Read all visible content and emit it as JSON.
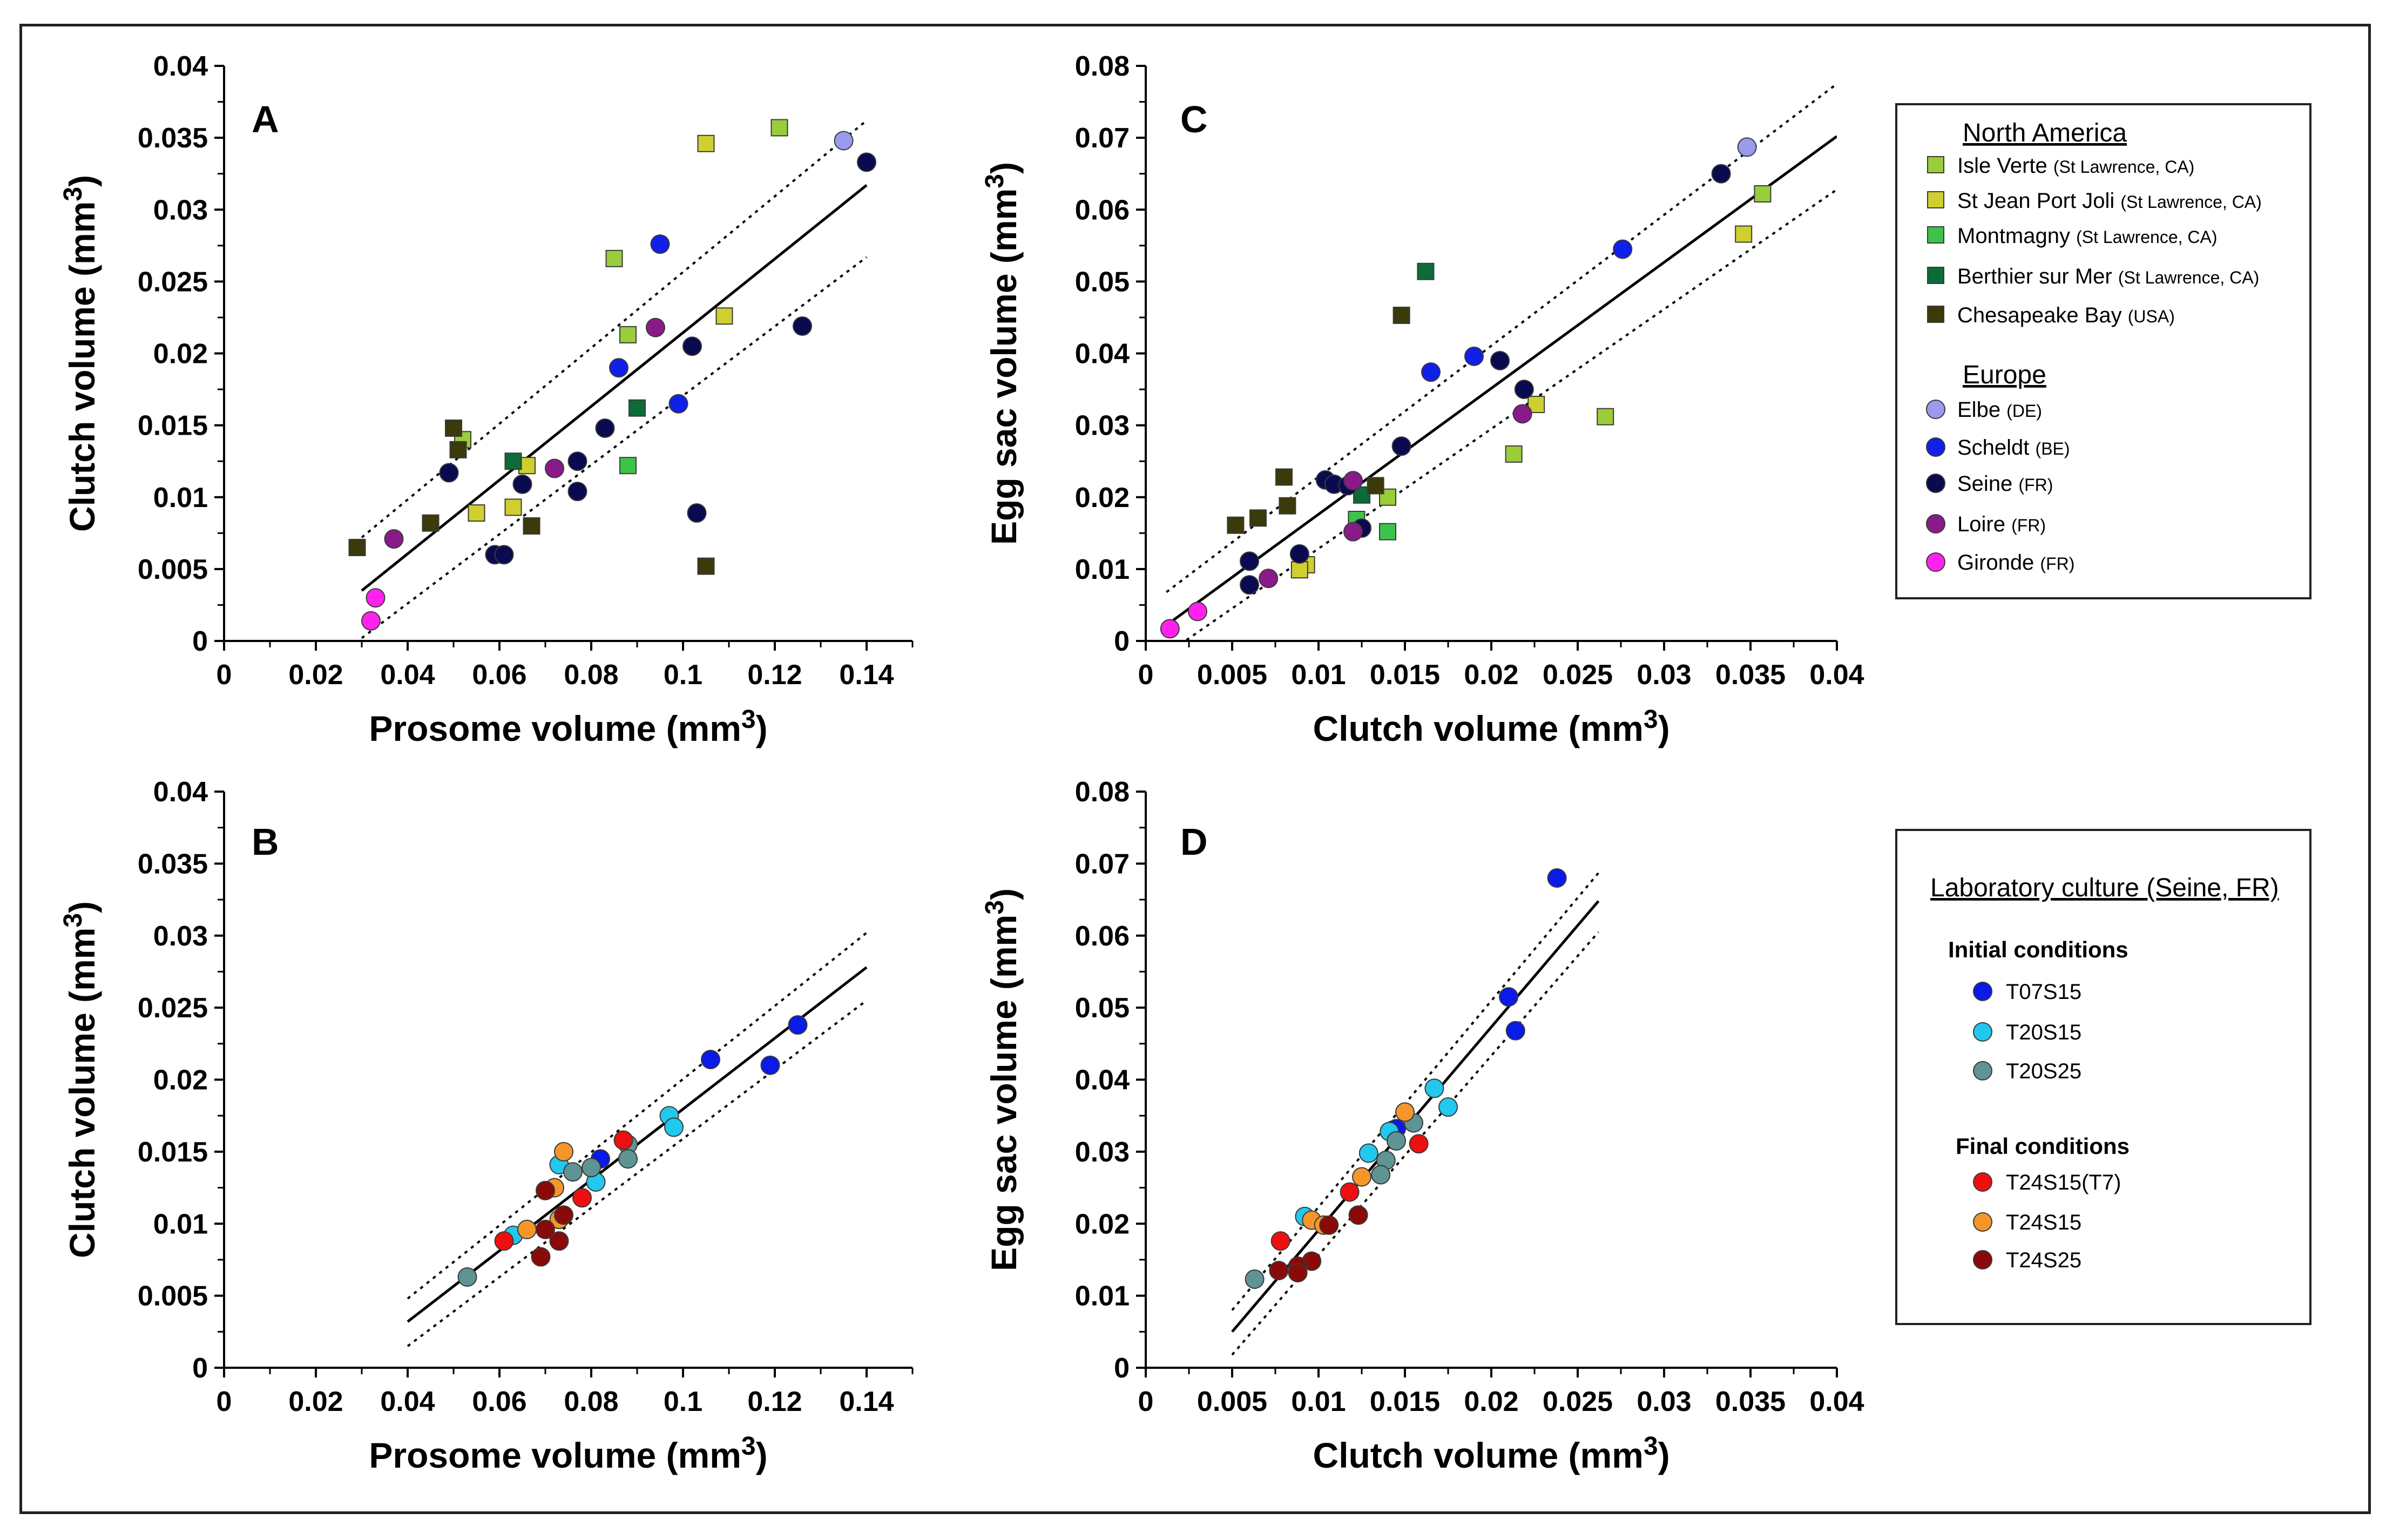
{
  "colors": {
    "isle_verte": "#9acd3a",
    "st_jean": "#cfcf30",
    "montmagny": "#3cc44a",
    "berthier": "#0d6b3a",
    "chesapeake": "#3a3a0a",
    "elbe": "#9a9aee",
    "scheldt": "#1020e8",
    "seine": "#0a0a50",
    "loire": "#8a1a8a",
    "gironde": "#ff22ee",
    "t07s15": "#0a1ae8",
    "t20s15": "#22c8ee",
    "t20s25": "#5e9494",
    "t24s15_t7": "#ee1010",
    "t24s15": "#f5962a",
    "t24s25": "#8a0a0a"
  },
  "legend_top": {
    "north_america_title": "North America",
    "europe_title": "Europe",
    "items": [
      {
        "key": "isle_verte",
        "label": "Isle Verte",
        "sub": "(St Lawrence, CA)",
        "marker": "square"
      },
      {
        "key": "st_jean",
        "label": "St Jean Port Joli",
        "sub": "(St Lawrence, CA)",
        "marker": "square"
      },
      {
        "key": "montmagny",
        "label": "Montmagny",
        "sub": "(St Lawrence, CA)",
        "marker": "square"
      },
      {
        "key": "berthier",
        "label": "Berthier sur Mer",
        "sub": "(St Lawrence, CA)",
        "marker": "square"
      },
      {
        "key": "chesapeake",
        "label": "Chesapeake Bay",
        "sub": "(USA)",
        "marker": "square"
      },
      {
        "key": "elbe",
        "label": "Elbe",
        "sub": "(DE)",
        "marker": "circle"
      },
      {
        "key": "scheldt",
        "label": "Scheldt",
        "sub": "(BE)",
        "marker": "circle"
      },
      {
        "key": "seine",
        "label": "Seine",
        "sub": "(FR)",
        "marker": "circle"
      },
      {
        "key": "loire",
        "label": "Loire",
        "sub": "(FR)",
        "marker": "circle"
      },
      {
        "key": "gironde",
        "label": "Gironde",
        "sub": "(FR)",
        "marker": "circle"
      }
    ]
  },
  "legend_bottom": {
    "title": "Laboratory culture (Seine, FR)",
    "initial_title": "Initial conditions",
    "final_title": "Final conditions",
    "items": [
      {
        "key": "t07s15",
        "label": "T07S15"
      },
      {
        "key": "t20s15",
        "label": "T20S15"
      },
      {
        "key": "t20s25",
        "label": "T20S25"
      },
      {
        "key": "t24s15_t7",
        "label": "T24S15(T7)"
      },
      {
        "key": "t24s15",
        "label": "T24S15"
      },
      {
        "key": "t24s25",
        "label": "T24S25"
      }
    ]
  },
  "chart_data": [
    {
      "panel": "A",
      "type": "scatter",
      "xlabel": "Prosome volume (mm3)",
      "ylabel": "Clutch volume (mm3)",
      "xlim": [
        0,
        0.15
      ],
      "ylim": [
        0,
        0.04
      ],
      "xticks": [
        "0",
        "0.02",
        "0.04",
        "0.06",
        "0.08",
        "0.1",
        "0.12",
        "0.14"
      ],
      "yticks": [
        "0",
        "0.005",
        "0.01",
        "0.015",
        "0.02",
        "0.025",
        "0.03",
        "0.035",
        "0.04"
      ],
      "fit": {
        "x": [
          0.03,
          0.14
        ],
        "y": [
          0.0035,
          0.0317
        ]
      },
      "ci_upper": {
        "x": [
          0.03,
          0.14
        ],
        "y": [
          0.0072,
          0.0362
        ]
      },
      "ci_lower": {
        "x": [
          0.03,
          0.14
        ],
        "y": [
          0.0002,
          0.0267
        ]
      },
      "points": [
        {
          "g": "isle_verte",
          "x": 0.121,
          "y": 0.0357
        },
        {
          "g": "isle_verte",
          "x": 0.085,
          "y": 0.0266
        },
        {
          "g": "isle_verte",
          "x": 0.088,
          "y": 0.0213
        },
        {
          "g": "isle_verte",
          "x": 0.052,
          "y": 0.014
        },
        {
          "g": "st_jean",
          "x": 0.105,
          "y": 0.0346
        },
        {
          "g": "st_jean",
          "x": 0.109,
          "y": 0.0226
        },
        {
          "g": "st_jean",
          "x": 0.066,
          "y": 0.0122
        },
        {
          "g": "st_jean",
          "x": 0.055,
          "y": 0.0089
        },
        {
          "g": "st_jean",
          "x": 0.063,
          "y": 0.0093
        },
        {
          "g": "montmagny",
          "x": 0.088,
          "y": 0.0122
        },
        {
          "g": "berthier",
          "x": 0.09,
          "y": 0.0162
        },
        {
          "g": "berthier",
          "x": 0.063,
          "y": 0.0125
        },
        {
          "g": "chesapeake",
          "x": 0.05,
          "y": 0.0148
        },
        {
          "g": "chesapeake",
          "x": 0.051,
          "y": 0.0133
        },
        {
          "g": "chesapeake",
          "x": 0.045,
          "y": 0.0082
        },
        {
          "g": "chesapeake",
          "x": 0.029,
          "y": 0.0065
        },
        {
          "g": "chesapeake",
          "x": 0.067,
          "y": 0.008
        },
        {
          "g": "chesapeake",
          "x": 0.105,
          "y": 0.0052
        },
        {
          "g": "elbe",
          "x": 0.135,
          "y": 0.0348
        },
        {
          "g": "scheldt",
          "x": 0.095,
          "y": 0.0276
        },
        {
          "g": "scheldt",
          "x": 0.086,
          "y": 0.019
        },
        {
          "g": "scheldt",
          "x": 0.099,
          "y": 0.0165
        },
        {
          "g": "seine",
          "x": 0.14,
          "y": 0.0333
        },
        {
          "g": "seine",
          "x": 0.126,
          "y": 0.0219
        },
        {
          "g": "seine",
          "x": 0.102,
          "y": 0.0205
        },
        {
          "g": "seine",
          "x": 0.083,
          "y": 0.0148
        },
        {
          "g": "seine",
          "x": 0.077,
          "y": 0.0125
        },
        {
          "g": "seine",
          "x": 0.065,
          "y": 0.0109
        },
        {
          "g": "seine",
          "x": 0.077,
          "y": 0.0104
        },
        {
          "g": "seine",
          "x": 0.049,
          "y": 0.0117
        },
        {
          "g": "seine",
          "x": 0.059,
          "y": 0.006
        },
        {
          "g": "seine",
          "x": 0.061,
          "y": 0.006
        },
        {
          "g": "seine",
          "x": 0.103,
          "y": 0.0089
        },
        {
          "g": "loire",
          "x": 0.094,
          "y": 0.0218
        },
        {
          "g": "loire",
          "x": 0.072,
          "y": 0.012
        },
        {
          "g": "loire",
          "x": 0.037,
          "y": 0.0071
        },
        {
          "g": "gironde",
          "x": 0.033,
          "y": 0.003
        },
        {
          "g": "gironde",
          "x": 0.032,
          "y": 0.0014
        }
      ]
    },
    {
      "panel": "C",
      "type": "scatter",
      "xlabel": "Clutch volume (mm3)",
      "ylabel": "Egg sac volume (mm3)",
      "xlim": [
        0,
        0.04
      ],
      "ylim": [
        0,
        0.08
      ],
      "xticks": [
        "0",
        "0.005",
        "0.01",
        "0.015",
        "0.02",
        "0.025",
        "0.03",
        "0.035",
        "0.04"
      ],
      "yticks": [
        "0",
        "0.01",
        "0.02",
        "0.03",
        "0.04",
        "0.05",
        "0.06",
        "0.07",
        "0.08"
      ],
      "fit": {
        "x": [
          0.0012,
          0.04
        ],
        "y": [
          0.0022,
          0.0702
        ]
      },
      "ci_upper": {
        "x": [
          0.0012,
          0.04
        ],
        "y": [
          0.0068,
          0.0775
        ]
      },
      "ci_lower": {
        "x": [
          0.0012,
          0.04
        ],
        "y": [
          -0.0018,
          0.0628
        ]
      },
      "points": [
        {
          "g": "isle_verte",
          "x": 0.0357,
          "y": 0.0622
        },
        {
          "g": "isle_verte",
          "x": 0.0266,
          "y": 0.0312
        },
        {
          "g": "isle_verte",
          "x": 0.0213,
          "y": 0.026
        },
        {
          "g": "isle_verte",
          "x": 0.014,
          "y": 0.02
        },
        {
          "g": "st_jean",
          "x": 0.0346,
          "y": 0.0566
        },
        {
          "g": "st_jean",
          "x": 0.0226,
          "y": 0.0329
        },
        {
          "g": "st_jean",
          "x": 0.0093,
          "y": 0.0106
        },
        {
          "g": "st_jean",
          "x": 0.0089,
          "y": 0.0099
        },
        {
          "g": "montmagny",
          "x": 0.014,
          "y": 0.0152
        },
        {
          "g": "montmagny",
          "x": 0.0122,
          "y": 0.0169
        },
        {
          "g": "berthier",
          "x": 0.0162,
          "y": 0.0514
        },
        {
          "g": "berthier",
          "x": 0.0125,
          "y": 0.0203
        },
        {
          "g": "chesapeake",
          "x": 0.0148,
          "y": 0.0453
        },
        {
          "g": "chesapeake",
          "x": 0.008,
          "y": 0.0228
        },
        {
          "g": "chesapeake",
          "x": 0.0082,
          "y": 0.0188
        },
        {
          "g": "chesapeake",
          "x": 0.0065,
          "y": 0.0171
        },
        {
          "g": "chesapeake",
          "x": 0.0052,
          "y": 0.0161
        },
        {
          "g": "chesapeake",
          "x": 0.0133,
          "y": 0.0216
        },
        {
          "g": "elbe",
          "x": 0.0348,
          "y": 0.0687
        },
        {
          "g": "scheldt",
          "x": 0.0276,
          "y": 0.0545
        },
        {
          "g": "scheldt",
          "x": 0.019,
          "y": 0.0396
        },
        {
          "g": "scheldt",
          "x": 0.0165,
          "y": 0.0374
        },
        {
          "g": "seine",
          "x": 0.0333,
          "y": 0.065
        },
        {
          "g": "seine",
          "x": 0.0205,
          "y": 0.039
        },
        {
          "g": "seine",
          "x": 0.0219,
          "y": 0.035
        },
        {
          "g": "seine",
          "x": 0.0148,
          "y": 0.0271
        },
        {
          "g": "seine",
          "x": 0.0104,
          "y": 0.0224
        },
        {
          "g": "seine",
          "x": 0.0109,
          "y": 0.0218
        },
        {
          "g": "seine",
          "x": 0.0117,
          "y": 0.0216
        },
        {
          "g": "seine",
          "x": 0.0125,
          "y": 0.0157
        },
        {
          "g": "seine",
          "x": 0.0089,
          "y": 0.0121
        },
        {
          "g": "seine",
          "x": 0.006,
          "y": 0.0111
        },
        {
          "g": "seine",
          "x": 0.006,
          "y": 0.0078
        },
        {
          "g": "loire",
          "x": 0.0218,
          "y": 0.0316
        },
        {
          "g": "loire",
          "x": 0.012,
          "y": 0.0223
        },
        {
          "g": "loire",
          "x": 0.012,
          "y": 0.0152
        },
        {
          "g": "loire",
          "x": 0.0071,
          "y": 0.0087
        },
        {
          "g": "gironde",
          "x": 0.003,
          "y": 0.0041
        },
        {
          "g": "gironde",
          "x": 0.0014,
          "y": 0.0017
        }
      ]
    },
    {
      "panel": "B",
      "type": "scatter",
      "xlabel": "Prosome volume (mm3)",
      "ylabel": "Clutch volume (mm3)",
      "xlim": [
        0,
        0.15
      ],
      "ylim": [
        0,
        0.04
      ],
      "xticks": [
        "0",
        "0.02",
        "0.04",
        "0.06",
        "0.08",
        "0.1",
        "0.12",
        "0.14"
      ],
      "yticks": [
        "0",
        "0.005",
        "0.01",
        "0.015",
        "0.02",
        "0.025",
        "0.03",
        "0.035",
        "0.04"
      ],
      "fit": {
        "x": [
          0.04,
          0.14
        ],
        "y": [
          0.0032,
          0.0278
        ]
      },
      "ci_upper": {
        "x": [
          0.04,
          0.14
        ],
        "y": [
          0.0048,
          0.0302
        ]
      },
      "ci_lower": {
        "x": [
          0.04,
          0.14
        ],
        "y": [
          0.0015,
          0.0255
        ]
      },
      "points": [
        {
          "g": "t07s15",
          "x": 0.125,
          "y": 0.0238
        },
        {
          "g": "t07s15",
          "x": 0.119,
          "y": 0.021
        },
        {
          "g": "t07s15",
          "x": 0.106,
          "y": 0.0214
        },
        {
          "g": "t07s15",
          "x": 0.082,
          "y": 0.0145
        },
        {
          "g": "t20s15",
          "x": 0.097,
          "y": 0.0175
        },
        {
          "g": "t20s15",
          "x": 0.098,
          "y": 0.0167
        },
        {
          "g": "t20s15",
          "x": 0.073,
          "y": 0.0141
        },
        {
          "g": "t20s15",
          "x": 0.081,
          "y": 0.0129
        },
        {
          "g": "t20s15",
          "x": 0.063,
          "y": 0.0092
        },
        {
          "g": "t20s25",
          "x": 0.088,
          "y": 0.0155
        },
        {
          "g": "t20s25",
          "x": 0.088,
          "y": 0.0145
        },
        {
          "g": "t20s25",
          "x": 0.076,
          "y": 0.0136
        },
        {
          "g": "t20s25",
          "x": 0.08,
          "y": 0.0139
        },
        {
          "g": "t20s25",
          "x": 0.053,
          "y": 0.0063
        },
        {
          "g": "t24s15",
          "x": 0.074,
          "y": 0.015
        },
        {
          "g": "t24s15",
          "x": 0.072,
          "y": 0.0125
        },
        {
          "g": "t24s15",
          "x": 0.066,
          "y": 0.0096
        },
        {
          "g": "t24s15",
          "x": 0.073,
          "y": 0.0103
        },
        {
          "g": "t24s15_t7",
          "x": 0.078,
          "y": 0.0118
        },
        {
          "g": "t24s15_t7",
          "x": 0.061,
          "y": 0.0088
        },
        {
          "g": "t24s15_t7",
          "x": 0.087,
          "y": 0.0158
        },
        {
          "g": "t24s25",
          "x": 0.07,
          "y": 0.0123
        },
        {
          "g": "t24s25",
          "x": 0.074,
          "y": 0.0106
        },
        {
          "g": "t24s25",
          "x": 0.07,
          "y": 0.0096
        },
        {
          "g": "t24s25",
          "x": 0.073,
          "y": 0.0088
        },
        {
          "g": "t24s25",
          "x": 0.069,
          "y": 0.0077
        }
      ]
    },
    {
      "panel": "D",
      "type": "scatter",
      "xlabel": "Clutch volume (mm3)",
      "ylabel": "Egg sac volume (mm3)",
      "xlim": [
        0,
        0.04
      ],
      "ylim": [
        0,
        0.08
      ],
      "xticks": [
        "0",
        "0.005",
        "0.01",
        "0.015",
        "0.02",
        "0.025",
        "0.03",
        "0.035",
        "0.04"
      ],
      "yticks": [
        "0",
        "0.01",
        "0.02",
        "0.03",
        "0.04",
        "0.05",
        "0.06",
        "0.07",
        "0.08"
      ],
      "fit": {
        "x": [
          0.005,
          0.0262
        ],
        "y": [
          0.005,
          0.0648
        ]
      },
      "ci_upper": {
        "x": [
          0.005,
          0.0262
        ],
        "y": [
          0.008,
          0.0687
        ]
      },
      "ci_lower": {
        "x": [
          0.005,
          0.0262
        ],
        "y": [
          0.0018,
          0.0605
        ]
      },
      "points": [
        {
          "g": "t07s15",
          "x": 0.0238,
          "y": 0.068
        },
        {
          "g": "t07s15",
          "x": 0.0214,
          "y": 0.0468
        },
        {
          "g": "t07s15",
          "x": 0.021,
          "y": 0.0515
        },
        {
          "g": "t07s15",
          "x": 0.0145,
          "y": 0.0332
        },
        {
          "g": "t20s15",
          "x": 0.0175,
          "y": 0.0362
        },
        {
          "g": "t20s15",
          "x": 0.0167,
          "y": 0.0388
        },
        {
          "g": "t20s15",
          "x": 0.0141,
          "y": 0.0328
        },
        {
          "g": "t20s15",
          "x": 0.0129,
          "y": 0.0298
        },
        {
          "g": "t20s15",
          "x": 0.0092,
          "y": 0.021
        },
        {
          "g": "t20s25",
          "x": 0.0155,
          "y": 0.034
        },
        {
          "g": "t20s25",
          "x": 0.0145,
          "y": 0.0315
        },
        {
          "g": "t20s25",
          "x": 0.0139,
          "y": 0.0288
        },
        {
          "g": "t20s25",
          "x": 0.0136,
          "y": 0.0268
        },
        {
          "g": "t20s25",
          "x": 0.0063,
          "y": 0.0123
        },
        {
          "g": "t24s15",
          "x": 0.015,
          "y": 0.0355
        },
        {
          "g": "t24s15",
          "x": 0.0125,
          "y": 0.0265
        },
        {
          "g": "t24s15",
          "x": 0.0096,
          "y": 0.0205
        },
        {
          "g": "t24s15",
          "x": 0.0103,
          "y": 0.0198
        },
        {
          "g": "t24s15_t7",
          "x": 0.0158,
          "y": 0.0311
        },
        {
          "g": "t24s15_t7",
          "x": 0.0118,
          "y": 0.0244
        },
        {
          "g": "t24s15_t7",
          "x": 0.0078,
          "y": 0.0176
        },
        {
          "g": "t24s25",
          "x": 0.0123,
          "y": 0.0212
        },
        {
          "g": "t24s25",
          "x": 0.0106,
          "y": 0.0198
        },
        {
          "g": "t24s25",
          "x": 0.0096,
          "y": 0.0148
        },
        {
          "g": "t24s25",
          "x": 0.0088,
          "y": 0.0141
        },
        {
          "g": "t24s25",
          "x": 0.0077,
          "y": 0.0135
        },
        {
          "g": "t24s25",
          "x": 0.0088,
          "y": 0.0132
        }
      ]
    }
  ]
}
